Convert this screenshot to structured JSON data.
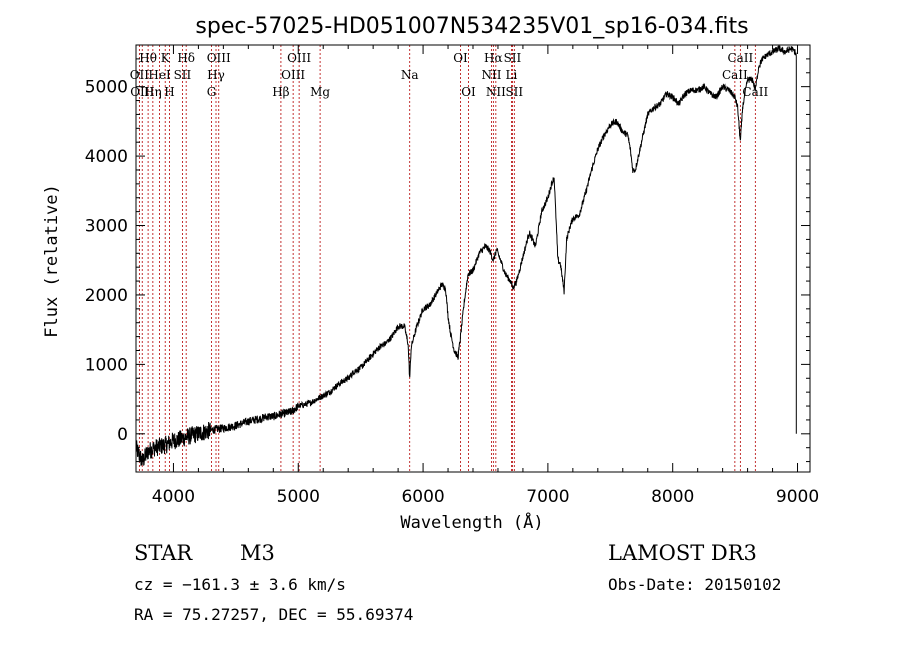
{
  "chart_data": {
    "type": "line",
    "title": "spec-57025-HD051007N534235V01_sp16-034.fits",
    "xlabel": "Wavelength (Å)",
    "ylabel": "Flux (relative)",
    "xlim": [
      3700,
      9100
    ],
    "ylim": [
      -550,
      5600
    ],
    "x_ticks": [
      4000,
      5000,
      6000,
      7000,
      8000,
      9000
    ],
    "y_ticks": [
      0,
      1000,
      2000,
      3000,
      4000,
      5000
    ],
    "series": [
      {
        "name": "spectrum",
        "x": [
          3700,
          3750,
          3800,
          3850,
          3900,
          3950,
          4000,
          4050,
          4100,
          4150,
          4200,
          4250,
          4300,
          4350,
          4400,
          4450,
          4500,
          4550,
          4600,
          4650,
          4700,
          4750,
          4800,
          4850,
          4900,
          4950,
          5000,
          5050,
          5100,
          5150,
          5200,
          5250,
          5300,
          5350,
          5400,
          5450,
          5500,
          5550,
          5600,
          5650,
          5700,
          5750,
          5800,
          5850,
          5880,
          5893,
          5905,
          5920,
          5950,
          6000,
          6050,
          6100,
          6150,
          6180,
          6200,
          6220,
          6250,
          6280,
          6300,
          6330,
          6360,
          6400,
          6450,
          6500,
          6530,
          6563,
          6590,
          6620,
          6660,
          6700,
          6720,
          6750,
          6800,
          6850,
          6900,
          6950,
          7000,
          7030,
          7050,
          7080,
          7100,
          7130,
          7150,
          7180,
          7200,
          7250,
          7300,
          7350,
          7400,
          7450,
          7500,
          7550,
          7600,
          7640,
          7660,
          7680,
          7700,
          7750,
          7800,
          7850,
          7900,
          7950,
          8000,
          8050,
          8100,
          8150,
          8200,
          8250,
          8300,
          8350,
          8400,
          8450,
          8498,
          8520,
          8542,
          8560,
          8600,
          8640,
          8662,
          8690,
          8720,
          8750,
          8800,
          8850,
          8900,
          8950,
          8980,
          8990
        ],
        "y": [
          -200,
          -400,
          -250,
          -200,
          -180,
          -150,
          -100,
          -80,
          -50,
          -20,
          0,
          30,
          50,
          70,
          80,
          100,
          120,
          150,
          180,
          200,
          220,
          250,
          250,
          280,
          300,
          320,
          400,
          420,
          450,
          500,
          550,
          600,
          680,
          750,
          800,
          900,
          950,
          1050,
          1150,
          1250,
          1300,
          1400,
          1550,
          1550,
          1300,
          780,
          1250,
          1350,
          1550,
          1800,
          1850,
          2000,
          2150,
          2100,
          1700,
          1450,
          1200,
          1100,
          1400,
          1900,
          2300,
          2350,
          2600,
          2700,
          2650,
          2500,
          2650,
          2500,
          2300,
          2200,
          2100,
          2200,
          2550,
          2900,
          2700,
          3200,
          3400,
          3600,
          3700,
          2500,
          2450,
          2050,
          2800,
          3000,
          3100,
          3150,
          3450,
          3800,
          4100,
          4300,
          4450,
          4500,
          4350,
          4300,
          4100,
          3800,
          3800,
          4200,
          4600,
          4700,
          4750,
          4900,
          4850,
          4750,
          4900,
          4950,
          4950,
          5000,
          4900,
          4850,
          5000,
          4950,
          4850,
          4700,
          4200,
          4700,
          5100,
          5100,
          4950,
          5300,
          5400,
          5450,
          5500,
          5550,
          5500,
          5550,
          5500,
          5450
        ]
      }
    ],
    "line_markers": [
      {
        "label": "Hθ",
        "x": 3797,
        "row": 1
      },
      {
        "label": "OII",
        "x": 3727,
        "row": 2
      },
      {
        "label": "OIII",
        "x": 3750,
        "row": 3
      },
      {
        "label": "K",
        "x": 3934,
        "row": 1
      },
      {
        "label": "HeI",
        "x": 3889,
        "row": 2
      },
      {
        "label": "Hη",
        "x": 3835,
        "row": 3
      },
      {
        "label": "H",
        "x": 3968,
        "row": 3
      },
      {
        "label": "SII",
        "x": 4072,
        "row": 2
      },
      {
        "label": "Hδ",
        "x": 4102,
        "row": 1
      },
      {
        "label": "OIII",
        "x": 4363,
        "row": 1
      },
      {
        "label": "Hγ",
        "x": 4341,
        "row": 2
      },
      {
        "label": "G",
        "x": 4305,
        "row": 3
      },
      {
        "label": "Hβ",
        "x": 4861,
        "row": 3
      },
      {
        "label": "OIII",
        "x": 5007,
        "row": 1
      },
      {
        "label": "OIII",
        "x": 4959,
        "row": 2
      },
      {
        "label": "Mg",
        "x": 5175,
        "row": 3
      },
      {
        "label": "Na",
        "x": 5893,
        "row": 2
      },
      {
        "label": "OI",
        "x": 6300,
        "row": 1
      },
      {
        "label": "OI",
        "x": 6364,
        "row": 3
      },
      {
        "label": "Hα",
        "x": 6563,
        "row": 1
      },
      {
        "label": "NII",
        "x": 6548,
        "row": 2
      },
      {
        "label": "NII",
        "x": 6583,
        "row": 3
      },
      {
        "label": "SII",
        "x": 6716,
        "row": 1
      },
      {
        "label": "Li",
        "x": 6708,
        "row": 2
      },
      {
        "label": "SII",
        "x": 6731,
        "row": 3
      },
      {
        "label": "CaII",
        "x": 8542,
        "row": 1
      },
      {
        "label": "CaII",
        "x": 8498,
        "row": 2
      },
      {
        "label": "CaII",
        "x": 8662,
        "row": 3
      }
    ]
  },
  "info": {
    "class": "STAR",
    "subclass": "M3",
    "survey": "LAMOST DR3",
    "cz": "cz = −161.3 ± 3.6 km/s",
    "obs_date": "Obs-Date: 20150102",
    "coords": "RA =  75.27257, DEC =  55.69374"
  },
  "colors": {
    "spectrum": "#000000",
    "marker": "#b40000"
  }
}
